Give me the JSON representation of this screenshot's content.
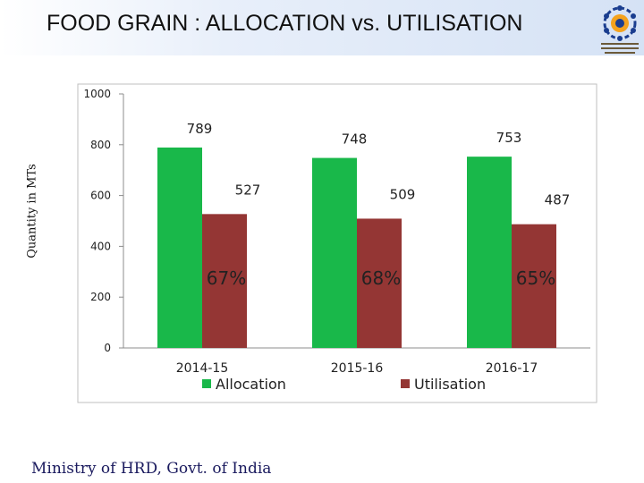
{
  "header": {
    "title": "FOOD GRAIN : ALLOCATION vs. UTILISATION"
  },
  "footer": {
    "text": "Ministry of HRD, Govt. of India"
  },
  "colors": {
    "allocation": "#19b84a",
    "utilisation": "#943634",
    "header_bg": "#d5e2f5"
  },
  "chart_data": {
    "type": "bar",
    "categories": [
      "2014-15",
      "2015-16",
      "2016-17"
    ],
    "series": [
      {
        "name": "Allocation",
        "values": [
          789,
          748,
          753
        ]
      },
      {
        "name": "Utilisation",
        "values": [
          527,
          509,
          487
        ]
      }
    ],
    "percent_labels": [
      "67%",
      "68%",
      "65%"
    ],
    "ylabel": "Quantity in MTs",
    "xlabel": "",
    "ylim": [
      0,
      1000
    ],
    "yticks": [
      0,
      200,
      400,
      600,
      800,
      1000
    ],
    "grid": false,
    "legend": "bottom"
  }
}
